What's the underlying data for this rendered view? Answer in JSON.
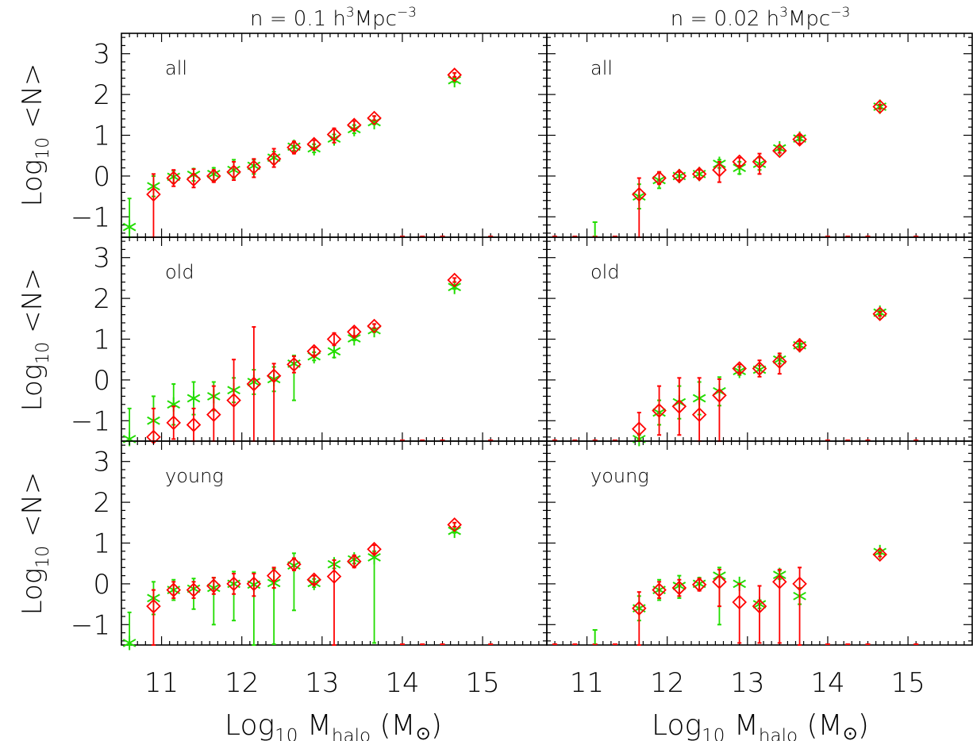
{
  "colors": {
    "series1": "#ff0000",
    "series2": "#22dd00",
    "axes": "#000000"
  },
  "labels": {
    "col_left_title": "n = 0.1 h",
    "col_left_sup1": "3",
    "col_left_mid": "Mpc",
    "col_left_sup2": "−3",
    "col_right_title": "n = 0.02 h",
    "col_right_sup1": "3",
    "col_right_mid": "Mpc",
    "col_right_sup2": "−3",
    "ylabel_main": "Log",
    "ylabel_sub": "10",
    "ylabel_rest": " <N>",
    "xlabel_main": "Log",
    "xlabel_sub": "10",
    "xlabel_mid": " M",
    "xlabel_msub": "halo",
    "xlabel_unit": " (M",
    "xlabel_sunsym": "⊙",
    "xlabel_close": ")"
  },
  "chart_data": {
    "type": "scatter",
    "layout": "grid 3 rows x 2 columns, shared axes",
    "xlim": [
      10.5,
      15.8
    ],
    "ylim": [
      -1.5,
      3.5
    ],
    "xticks": [
      11,
      12,
      13,
      14,
      15
    ],
    "yticks": [
      -1,
      0,
      1,
      2,
      3
    ],
    "ytick_labels": [
      "−1",
      "0",
      "1",
      "2",
      "3"
    ],
    "markers": {
      "series1": "diamond, red",
      "series2": "asterisk, green"
    },
    "panels": [
      {
        "row": 0,
        "col": 0,
        "label": "all",
        "series1": [
          [
            10.9,
            -0.45,
            0.5,
            1.2
          ],
          [
            11.15,
            -0.05,
            0.2,
            0.2
          ],
          [
            11.4,
            -0.08,
            0.25,
            0.2
          ],
          [
            11.65,
            0.0,
            0.15,
            0.15
          ],
          [
            11.9,
            0.1,
            0.25,
            0.2
          ],
          [
            12.15,
            0.22,
            0.2,
            0.25
          ],
          [
            12.4,
            0.42,
            0.25,
            0.2
          ],
          [
            12.65,
            0.7,
            0.15,
            0.15
          ],
          [
            12.9,
            0.78,
            0.1,
            0.1
          ],
          [
            13.15,
            1.02,
            0.15,
            0.2
          ],
          [
            13.4,
            1.25,
            0.1,
            0.1
          ],
          [
            13.65,
            1.42,
            0.05,
            0.05
          ],
          [
            14.65,
            2.48,
            0.05,
            0.05
          ]
        ],
        "series2": [
          [
            10.6,
            -1.25,
            0.7,
            0.3
          ],
          [
            10.9,
            -0.25,
            0.25,
            0.25
          ],
          [
            11.15,
            -0.02,
            0.15,
            0.15
          ],
          [
            11.4,
            0.03,
            0.15,
            0.15
          ],
          [
            11.65,
            0.05,
            0.15,
            0.15
          ],
          [
            11.9,
            0.15,
            0.25,
            0.2
          ],
          [
            12.15,
            0.25,
            0.15,
            0.2
          ],
          [
            12.4,
            0.45,
            0.15,
            0.15
          ],
          [
            12.65,
            0.72,
            0.1,
            0.1
          ],
          [
            12.9,
            0.68,
            0.1,
            0.1
          ],
          [
            13.15,
            0.92,
            0.1,
            0.1
          ],
          [
            13.4,
            1.15,
            0.1,
            0.1
          ],
          [
            13.65,
            1.32,
            0.05,
            0.05
          ],
          [
            14.65,
            2.35,
            0.05,
            0.05
          ]
        ],
        "floor1": [
          14.0,
          14.25,
          14.5,
          15.1
        ],
        "floor2": []
      },
      {
        "row": 0,
        "col": 1,
        "label": "all",
        "series1": [
          [
            11.65,
            -0.45,
            0.4,
            1.2
          ],
          [
            11.9,
            -0.05,
            0.15,
            0.15
          ],
          [
            12.15,
            0.0,
            0.1,
            0.1
          ],
          [
            12.4,
            0.05,
            0.1,
            0.1
          ],
          [
            12.65,
            0.15,
            0.2,
            0.3
          ],
          [
            12.9,
            0.35,
            0.1,
            0.1
          ],
          [
            13.15,
            0.35,
            0.2,
            0.3
          ],
          [
            13.4,
            0.62,
            0.05,
            0.05
          ],
          [
            13.65,
            0.9,
            0.1,
            0.1
          ],
          [
            14.65,
            1.7,
            0.05,
            0.05
          ]
        ],
        "series2": [
          [
            11.65,
            -0.5,
            0.3,
            0.3
          ],
          [
            11.9,
            -0.1,
            0.2,
            0.2
          ],
          [
            12.15,
            0.0,
            0.1,
            0.1
          ],
          [
            12.4,
            0.05,
            0.1,
            0.1
          ],
          [
            12.65,
            0.3,
            0.1,
            0.1
          ],
          [
            12.9,
            0.2,
            0.15,
            0.15
          ],
          [
            13.15,
            0.3,
            0.15,
            0.15
          ],
          [
            13.4,
            0.68,
            0.05,
            0.05
          ],
          [
            13.65,
            0.92,
            0.05,
            0.05
          ],
          [
            14.65,
            1.7,
            0.05,
            0.05
          ]
        ],
        "floor1": [
          10.6,
          10.85,
          11.1,
          11.35,
          14.0,
          14.25,
          14.5,
          15.1
        ],
        "floor2": [
          11.1
        ]
      },
      {
        "row": 1,
        "col": 0,
        "label": "old",
        "series1": [
          [
            10.9,
            -1.4,
            0.7,
            0.2
          ],
          [
            11.15,
            -1.05,
            0.4,
            0.4
          ],
          [
            11.4,
            -1.1,
            0.4,
            0.4
          ],
          [
            11.65,
            -0.85,
            0.7,
            0.7
          ],
          [
            11.9,
            -0.5,
            1.0,
            1.0
          ],
          [
            12.15,
            -0.1,
            1.4,
            1.4
          ],
          [
            12.4,
            0.1,
            0.3,
            1.6
          ],
          [
            12.65,
            0.38,
            0.2,
            0.2
          ],
          [
            12.9,
            0.7,
            0.1,
            0.1
          ],
          [
            13.15,
            1.0,
            0.15,
            0.15
          ],
          [
            13.4,
            1.18,
            0.1,
            0.1
          ],
          [
            13.65,
            1.32,
            0.05,
            0.05
          ],
          [
            14.65,
            2.45,
            0.05,
            0.05
          ]
        ],
        "series2": [
          [
            10.6,
            -1.45,
            0.75,
            0.1
          ],
          [
            10.9,
            -1.0,
            0.6,
            0.5
          ],
          [
            11.15,
            -0.6,
            0.5,
            0.5
          ],
          [
            11.4,
            -0.45,
            0.4,
            0.4
          ],
          [
            11.65,
            -0.4,
            0.35,
            0.35
          ],
          [
            11.9,
            -0.25,
            0.3,
            0.3
          ],
          [
            12.15,
            -0.05,
            0.3,
            0.3
          ],
          [
            12.4,
            0.02,
            0.3,
            0.3
          ],
          [
            12.65,
            0.4,
            0.2,
            0.9
          ],
          [
            12.9,
            0.58,
            0.1,
            0.1
          ],
          [
            13.15,
            0.7,
            0.15,
            0.15
          ],
          [
            13.4,
            1.02,
            0.05,
            0.05
          ],
          [
            13.65,
            1.22,
            0.05,
            0.05
          ],
          [
            14.65,
            2.28,
            0.05,
            0.05
          ]
        ],
        "floor1": [
          14.0,
          14.25,
          14.5,
          15.1
        ],
        "floor2": []
      },
      {
        "row": 1,
        "col": 1,
        "label": "old",
        "series1": [
          [
            11.65,
            -1.2,
            0.4,
            0.4
          ],
          [
            11.9,
            -0.75,
            0.6,
            0.6
          ],
          [
            12.15,
            -0.65,
            0.7,
            0.7
          ],
          [
            12.4,
            -0.85,
            0.9,
            0.9
          ],
          [
            12.65,
            -0.38,
            0.4,
            1.2
          ],
          [
            12.9,
            0.28,
            0.1,
            0.1
          ],
          [
            13.15,
            0.28,
            0.2,
            0.2
          ],
          [
            13.4,
            0.45,
            0.2,
            0.3
          ],
          [
            13.65,
            0.85,
            0.1,
            0.1
          ],
          [
            14.65,
            1.62,
            0.05,
            0.05
          ]
        ],
        "series2": [
          [
            11.65,
            -1.45,
            0.1,
            0.1
          ],
          [
            11.9,
            -0.8,
            0.3,
            0.3
          ],
          [
            12.15,
            -0.55,
            0.4,
            0.4
          ],
          [
            12.4,
            -0.45,
            0.4,
            0.4
          ],
          [
            12.65,
            -0.28,
            0.35,
            0.35
          ],
          [
            12.9,
            0.22,
            0.1,
            0.1
          ],
          [
            13.15,
            0.25,
            0.1,
            0.1
          ],
          [
            13.4,
            0.5,
            0.1,
            0.1
          ],
          [
            13.65,
            0.85,
            0.05,
            0.05
          ],
          [
            14.65,
            1.65,
            0.05,
            0.05
          ]
        ],
        "floor1": [
          10.6,
          10.85,
          11.1,
          11.35,
          14.0,
          14.25,
          14.5,
          15.1
        ],
        "floor2": []
      },
      {
        "row": 2,
        "col": 0,
        "label": "young",
        "series1": [
          [
            10.9,
            -0.55,
            0.4,
            1.0
          ],
          [
            11.15,
            -0.15,
            0.2,
            0.2
          ],
          [
            11.4,
            -0.15,
            0.2,
            0.2
          ],
          [
            11.65,
            -0.05,
            0.2,
            0.2
          ],
          [
            11.9,
            0.0,
            0.25,
            0.25
          ],
          [
            12.15,
            0.0,
            0.25,
            0.3
          ],
          [
            12.4,
            0.2,
            0.2,
            0.3
          ],
          [
            12.65,
            0.48,
            0.15,
            0.15
          ],
          [
            12.9,
            0.1,
            0.1,
            0.1
          ],
          [
            13.15,
            0.18,
            0.4,
            1.7
          ],
          [
            13.4,
            0.55,
            0.15,
            0.15
          ],
          [
            13.65,
            0.85,
            0.1,
            0.1
          ],
          [
            14.65,
            1.45,
            0.05,
            0.05
          ]
        ],
        "series2": [
          [
            10.6,
            -1.45,
            0.75,
            0.1
          ],
          [
            10.9,
            -0.35,
            0.4,
            0.4
          ],
          [
            11.15,
            -0.15,
            0.25,
            0.25
          ],
          [
            11.4,
            -0.12,
            0.25,
            0.5
          ],
          [
            11.65,
            -0.1,
            0.25,
            0.9
          ],
          [
            11.9,
            0.0,
            0.3,
            0.9
          ],
          [
            12.15,
            -0.02,
            0.3,
            1.5
          ],
          [
            12.4,
            0.02,
            0.35,
            1.5
          ],
          [
            12.65,
            0.45,
            0.3,
            1.1
          ],
          [
            12.9,
            0.02,
            0.1,
            0.1
          ],
          [
            13.15,
            0.48,
            0.1,
            0.1
          ],
          [
            13.4,
            0.6,
            0.1,
            0.1
          ],
          [
            13.65,
            0.65,
            0.15,
            2.1
          ],
          [
            14.65,
            1.3,
            0.05,
            0.05
          ]
        ],
        "floor1": [
          14.0,
          14.25,
          14.5,
          15.1
        ],
        "floor2": []
      },
      {
        "row": 2,
        "col": 1,
        "label": "young",
        "series1": [
          [
            11.65,
            -0.6,
            0.4,
            0.9
          ],
          [
            11.9,
            -0.15,
            0.2,
            0.2
          ],
          [
            12.15,
            -0.1,
            0.2,
            0.2
          ],
          [
            12.4,
            -0.02,
            0.15,
            0.15
          ],
          [
            12.65,
            0.05,
            0.3,
            0.6
          ],
          [
            12.9,
            -0.45,
            0.45,
            1.0
          ],
          [
            13.15,
            -0.55,
            0.5,
            0.9
          ],
          [
            13.4,
            0.05,
            0.3,
            1.5
          ],
          [
            13.65,
            0.0,
            0.4,
            1.5
          ],
          [
            14.65,
            0.72,
            0.05,
            0.05
          ]
        ],
        "series2": [
          [
            11.65,
            -0.6,
            0.3,
            0.3
          ],
          [
            11.9,
            -0.15,
            0.25,
            0.25
          ],
          [
            12.15,
            -0.05,
            0.25,
            0.3
          ],
          [
            12.4,
            0.0,
            0.15,
            0.15
          ],
          [
            12.65,
            0.2,
            0.2,
            1.2
          ],
          [
            12.9,
            0.0,
            0.0,
            0.0
          ],
          [
            13.15,
            -0.5,
            0.1,
            0.1
          ],
          [
            13.4,
            0.22,
            0.1,
            0.1
          ],
          [
            13.65,
            -0.3,
            0.2,
            0.2
          ],
          [
            14.65,
            0.78,
            0.05,
            0.05
          ]
        ],
        "floor1": [
          10.6,
          10.85,
          11.1,
          11.35,
          14.0,
          14.25,
          14.5,
          15.1
        ],
        "floor2": [
          11.1
        ]
      }
    ]
  }
}
